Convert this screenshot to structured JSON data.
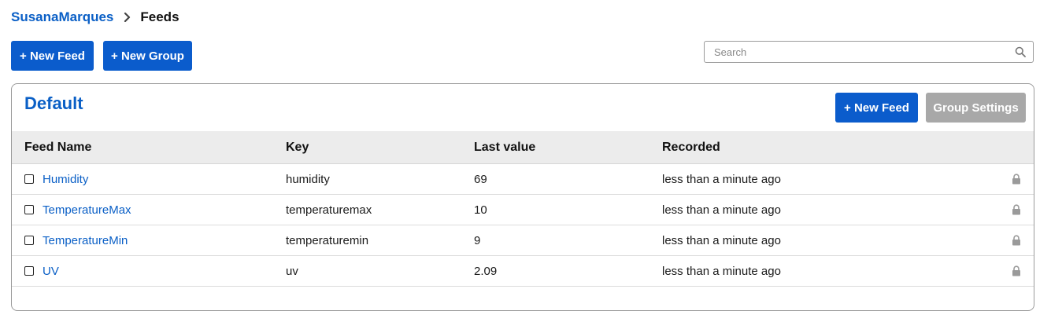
{
  "breadcrumb": {
    "user": "SusanaMarques",
    "current": "Feeds"
  },
  "toolbar": {
    "new_feed_label": "+ New Feed",
    "new_group_label": "+ New Group"
  },
  "search": {
    "placeholder": "Search",
    "value": ""
  },
  "group": {
    "title": "Default",
    "new_feed_label": "+ New Feed",
    "settings_label": "Group Settings",
    "columns": [
      "Feed Name",
      "Key",
      "Last value",
      "Recorded"
    ],
    "rows": [
      {
        "name": "Humidity",
        "key": "humidity",
        "last_value": "69",
        "recorded": "less than a minute ago"
      },
      {
        "name": "TemperatureMax",
        "key": "temperaturemax",
        "last_value": "10",
        "recorded": "less than a minute ago"
      },
      {
        "name": "TemperatureMin",
        "key": "temperaturemin",
        "last_value": "9",
        "recorded": "less than a minute ago"
      },
      {
        "name": "UV",
        "key": "uv",
        "last_value": "2.09",
        "recorded": "less than a minute ago"
      }
    ]
  },
  "colors": {
    "accent": "#0b5ccc",
    "link": "#0a5fc6",
    "disabled_button": "#a8a8a8",
    "header_bg": "#ececec"
  },
  "icons": {
    "breadcrumb_separator": "chevron-right-icon",
    "search": "search-icon",
    "row_privacy": "lock-icon"
  }
}
